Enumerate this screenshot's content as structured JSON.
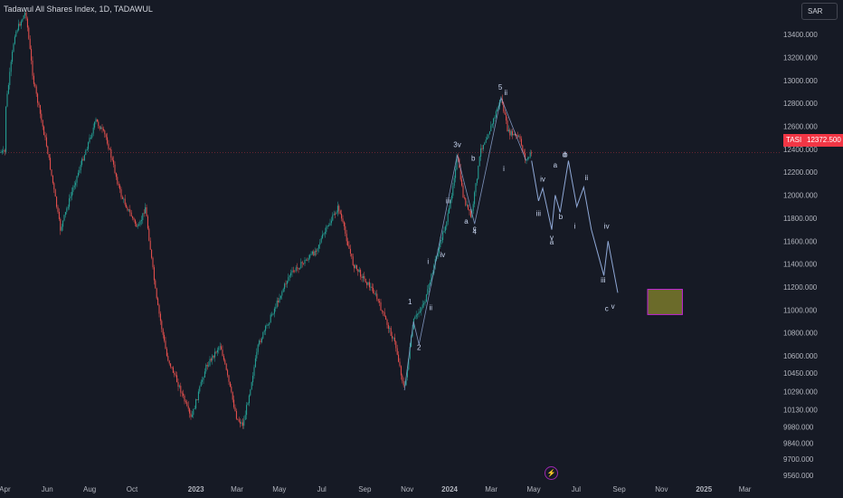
{
  "header": {
    "title": "Tadawul All Shares Index, 1D, TADAWUL",
    "currency": "SAR"
  },
  "price_tag": {
    "ticker": "TASI",
    "price": "12372.500"
  },
  "icons": {
    "events": "lightning-icon"
  },
  "colors": {
    "background": "#161a25",
    "up": "#26a69a",
    "down": "#ef5350",
    "wave": "#8fa8d6",
    "target_fill": "#6b6b2a",
    "target_border": "#c026d3"
  },
  "chart_data": {
    "type": "candlestick",
    "title": "Tadawul All Shares Index, 1D, TADAWUL",
    "x_tick_labels": [
      "Apr",
      "Jun",
      "Aug",
      "Oct",
      "2023",
      "Mar",
      "May",
      "Jul",
      "Sep",
      "Nov",
      "2024",
      "Mar",
      "May",
      "Jul",
      "Sep",
      "Nov",
      "2025",
      "Mar"
    ],
    "y_tick_labels": [
      "13400.000",
      "13200.000",
      "13000.000",
      "12800.000",
      "12600.000",
      "12400.000",
      "12200.000",
      "12000.000",
      "11800.000",
      "11600.000",
      "11400.000",
      "11200.000",
      "11000.000",
      "10800.000",
      "10600.000",
      "10450.000",
      "10290.000",
      "10130.000",
      "9980.000",
      "9840.000",
      "9700.000",
      "9560.000"
    ],
    "last_price": 12372.5,
    "price_path": [
      {
        "t": "2022-04-01",
        "p": 12700
      },
      {
        "t": "2022-04-15",
        "p": 13400
      },
      {
        "t": "2022-05-01",
        "p": 13600
      },
      {
        "t": "2022-05-12",
        "p": 13000
      },
      {
        "t": "2022-06-01",
        "p": 12400
      },
      {
        "t": "2022-06-20",
        "p": 11700
      },
      {
        "t": "2022-07-10",
        "p": 12100
      },
      {
        "t": "2022-08-10",
        "p": 12650
      },
      {
        "t": "2022-08-25",
        "p": 12500
      },
      {
        "t": "2022-09-15",
        "p": 12000
      },
      {
        "t": "2022-10-10",
        "p": 11700
      },
      {
        "t": "2022-10-20",
        "p": 11900
      },
      {
        "t": "2022-11-05",
        "p": 11100
      },
      {
        "t": "2022-11-20",
        "p": 10600
      },
      {
        "t": "2022-12-10",
        "p": 10300
      },
      {
        "t": "2022-12-25",
        "p": 10050
      },
      {
        "t": "2023-01-15",
        "p": 10500
      },
      {
        "t": "2023-02-05",
        "p": 10700
      },
      {
        "t": "2023-03-01",
        "p": 10050
      },
      {
        "t": "2023-03-10",
        "p": 10000
      },
      {
        "t": "2023-04-01",
        "p": 10700
      },
      {
        "t": "2023-05-15",
        "p": 11300
      },
      {
        "t": "2023-06-20",
        "p": 11500
      },
      {
        "t": "2023-07-25",
        "p": 11900
      },
      {
        "t": "2023-08-15",
        "p": 11400
      },
      {
        "t": "2023-09-15",
        "p": 11150
      },
      {
        "t": "2023-10-15",
        "p": 10700
      },
      {
        "t": "2023-10-28",
        "p": 10300
      },
      {
        "t": "2023-11-10",
        "p": 10900
      },
      {
        "t": "2023-11-28",
        "p": 11100
      },
      {
        "t": "2023-12-10",
        "p": 11400
      },
      {
        "t": "2023-12-31",
        "p": 11850
      },
      {
        "t": "2024-01-12",
        "p": 12350
      },
      {
        "t": "2024-01-20",
        "p": 12000
      },
      {
        "t": "2024-02-01",
        "p": 11800
      },
      {
        "t": "2024-02-15",
        "p": 12400
      },
      {
        "t": "2024-03-01",
        "p": 12600
      },
      {
        "t": "2024-03-15",
        "p": 12850
      },
      {
        "t": "2024-03-25",
        "p": 12550
      },
      {
        "t": "2024-04-10",
        "p": 12500
      },
      {
        "t": "2024-04-20",
        "p": 12300
      },
      {
        "t": "2024-04-28",
        "p": 12372.5
      }
    ],
    "wave_labels": [
      {
        "text": "1",
        "t": "2023-11-05",
        "p": 11050
      },
      {
        "text": "2",
        "t": "2023-11-18",
        "p": 10650
      },
      {
        "text": "i",
        "t": "2023-12-01",
        "p": 11400
      },
      {
        "text": "ii",
        "t": "2023-12-05",
        "p": 11000
      },
      {
        "text": "iii",
        "t": "2023-12-30",
        "p": 11930
      },
      {
        "text": "iv",
        "t": "2023-12-22",
        "p": 11460
      },
      {
        "text": "3v",
        "t": "2024-01-12",
        "p": 12420
      },
      {
        "text": "a",
        "t": "2024-01-25",
        "p": 11750
      },
      {
        "text": "b",
        "t": "2024-02-04",
        "p": 12300
      },
      {
        "text": "c",
        "t": "2024-02-06",
        "p": 11690
      },
      {
        "text": "4",
        "t": "2024-02-06",
        "p": 11660
      },
      {
        "text": "5",
        "t": "2024-03-14",
        "p": 12920
      },
      {
        "text": "ii",
        "t": "2024-03-22",
        "p": 12870
      },
      {
        "text": "i",
        "t": "2024-03-19",
        "p": 12210
      },
      {
        "text": "iv",
        "t": "2024-05-14",
        "p": 12120
      },
      {
        "text": "a",
        "t": "2024-06-01",
        "p": 12240
      },
      {
        "text": "iii",
        "t": "2024-05-08",
        "p": 11820
      },
      {
        "text": "b",
        "t": "2024-06-09",
        "p": 11790
      },
      {
        "text": "v",
        "t": "2024-05-27",
        "p": 11610
      },
      {
        "text": "a",
        "t": "2024-05-27",
        "p": 11570
      },
      {
        "text": "d",
        "t": "2024-06-14",
        "p": 12330
      },
      {
        "text": "b",
        "t": "2024-06-16",
        "p": 12330
      },
      {
        "text": "ii",
        "t": "2024-07-16",
        "p": 12130
      },
      {
        "text": "i",
        "t": "2024-06-29",
        "p": 11710
      },
      {
        "text": "iv",
        "t": "2024-08-14",
        "p": 11710
      },
      {
        "text": "iii",
        "t": "2024-08-09",
        "p": 11240
      },
      {
        "text": "c",
        "t": "2024-08-14",
        "p": 10990
      },
      {
        "text": "v",
        "t": "2024-08-23",
        "p": 11010
      }
    ],
    "projection": [
      {
        "t": "2024-04-28",
        "p": 12300
      },
      {
        "t": "2024-05-08",
        "p": 11950
      },
      {
        "t": "2024-05-14",
        "p": 12060
      },
      {
        "t": "2024-05-27",
        "p": 11700
      },
      {
        "t": "2024-06-01",
        "p": 12000
      },
      {
        "t": "2024-06-08",
        "p": 11850
      },
      {
        "t": "2024-06-20",
        "p": 12300
      },
      {
        "t": "2024-07-02",
        "p": 11900
      },
      {
        "t": "2024-07-12",
        "p": 12070
      },
      {
        "t": "2024-07-23",
        "p": 11700
      },
      {
        "t": "2024-08-10",
        "p": 11300
      },
      {
        "t": "2024-08-16",
        "p": 11600
      },
      {
        "t": "2024-08-30",
        "p": 11150
      }
    ],
    "target_zone": {
      "t_start": "2024-10-12",
      "t_end": "2024-12-01",
      "p_low": 10960,
      "p_high": 11180
    },
    "y_range": [
      9520,
      13700
    ],
    "x_range": [
      "2022-03-25",
      "2025-04-20"
    ],
    "grid": false
  }
}
